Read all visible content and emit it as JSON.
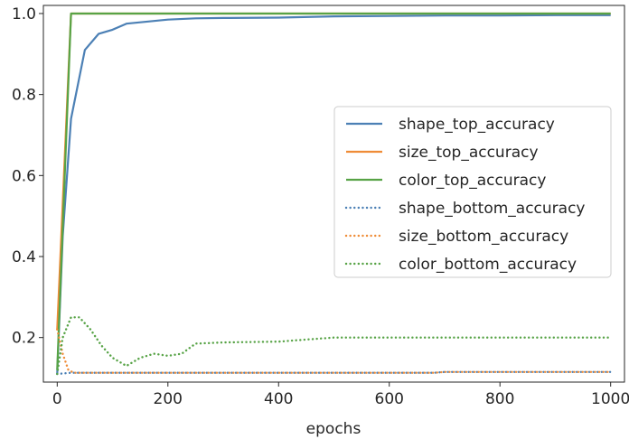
{
  "chart_data": {
    "type": "line",
    "title": "",
    "xlabel": "epochs",
    "ylabel": "",
    "xlim": [
      -25,
      1025
    ],
    "ylim": [
      0.09,
      1.02
    ],
    "xticks": [
      0,
      200,
      400,
      600,
      800,
      1000
    ],
    "yticks": [
      0.2,
      0.4,
      0.6,
      0.8,
      1.0
    ],
    "xtick_labels": [
      "0",
      "200",
      "400",
      "600",
      "800",
      "1000"
    ],
    "ytick_labels": [
      "0.2",
      "0.4",
      "0.6",
      "0.8",
      "1.0"
    ],
    "grid": false,
    "legend_position": "center-right",
    "series": [
      {
        "name": "shape_top_accuracy",
        "color": "#4c80b5",
        "style": "solid",
        "points": [
          [
            0,
            0.11
          ],
          [
            10,
            0.45
          ],
          [
            25,
            0.74
          ],
          [
            50,
            0.91
          ],
          [
            75,
            0.95
          ],
          [
            100,
            0.96
          ],
          [
            125,
            0.975
          ],
          [
            200,
            0.985
          ],
          [
            250,
            0.988
          ],
          [
            300,
            0.989
          ],
          [
            400,
            0.99
          ],
          [
            500,
            0.993
          ],
          [
            600,
            0.994
          ],
          [
            700,
            0.995
          ],
          [
            800,
            0.995
          ],
          [
            900,
            0.996
          ],
          [
            1000,
            0.996
          ]
        ]
      },
      {
        "name": "size_top_accuracy",
        "color": "#ef8c37",
        "style": "solid",
        "points": [
          [
            0,
            0.22
          ],
          [
            25,
            1.0
          ],
          [
            100,
            1.0
          ],
          [
            500,
            1.0
          ],
          [
            1000,
            1.0
          ]
        ]
      },
      {
        "name": "color_top_accuracy",
        "color": "#57a346",
        "style": "solid",
        "points": [
          [
            0,
            0.12
          ],
          [
            25,
            1.0
          ],
          [
            100,
            1.0
          ],
          [
            500,
            1.0
          ],
          [
            1000,
            1.0
          ]
        ]
      },
      {
        "name": "shape_bottom_accuracy",
        "color": "#4c80b5",
        "style": "dotted",
        "points": [
          [
            0,
            0.11
          ],
          [
            25,
            0.113
          ],
          [
            100,
            0.113
          ],
          [
            400,
            0.113
          ],
          [
            680,
            0.113
          ],
          [
            700,
            0.115
          ],
          [
            1000,
            0.115
          ]
        ]
      },
      {
        "name": "size_bottom_accuracy",
        "color": "#ef8c37",
        "style": "dotted",
        "points": [
          [
            0,
            0.22
          ],
          [
            10,
            0.16
          ],
          [
            20,
            0.12
          ],
          [
            30,
            0.113
          ],
          [
            100,
            0.113
          ],
          [
            400,
            0.113
          ],
          [
            680,
            0.113
          ],
          [
            700,
            0.115
          ],
          [
            1000,
            0.115
          ]
        ]
      },
      {
        "name": "color_bottom_accuracy",
        "color": "#57a346",
        "style": "dotted",
        "points": [
          [
            0,
            0.11
          ],
          [
            10,
            0.2
          ],
          [
            25,
            0.25
          ],
          [
            40,
            0.25
          ],
          [
            60,
            0.22
          ],
          [
            80,
            0.18
          ],
          [
            100,
            0.15
          ],
          [
            125,
            0.13
          ],
          [
            150,
            0.15
          ],
          [
            175,
            0.16
          ],
          [
            200,
            0.155
          ],
          [
            225,
            0.16
          ],
          [
            250,
            0.185
          ],
          [
            300,
            0.188
          ],
          [
            400,
            0.19
          ],
          [
            450,
            0.195
          ],
          [
            500,
            0.2
          ],
          [
            600,
            0.2
          ],
          [
            800,
            0.2
          ],
          [
            1000,
            0.2
          ]
        ]
      }
    ]
  }
}
